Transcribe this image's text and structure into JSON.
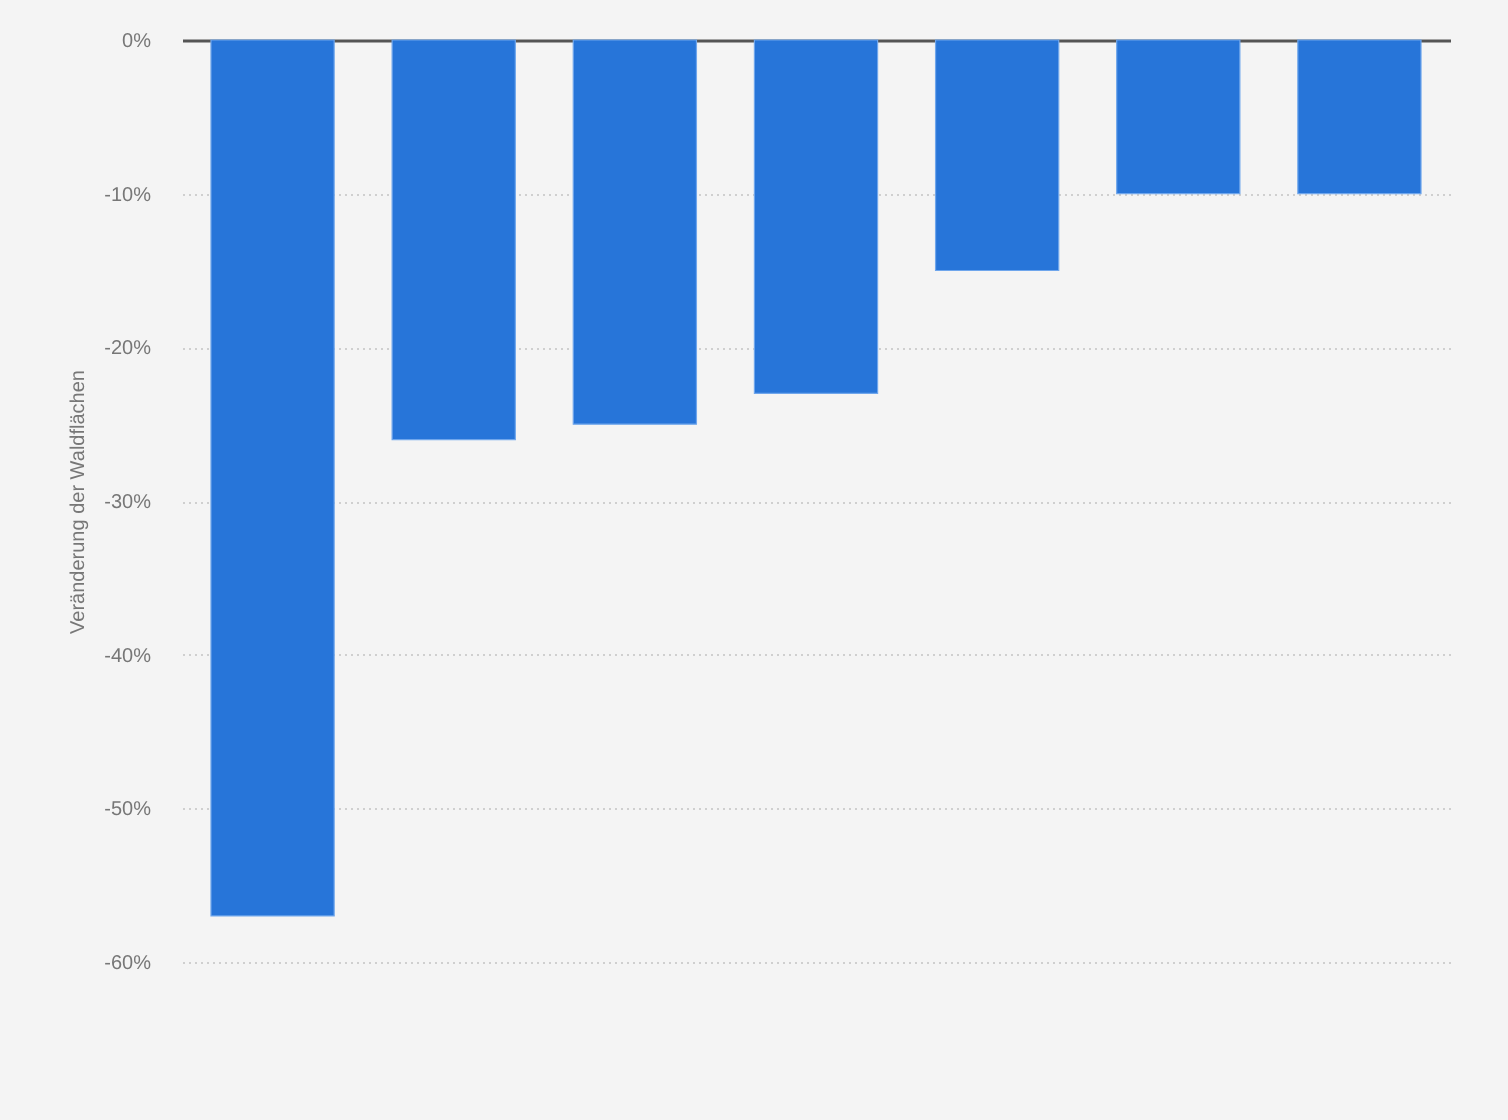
{
  "chart_data": {
    "type": "bar",
    "ylabel": "Veränderung der Waldflächen",
    "categories": [
      null,
      null,
      null,
      null,
      null,
      null,
      null
    ],
    "values": [
      -57,
      -26,
      -25,
      -23,
      -15,
      -10,
      -10
    ],
    "color": "#2775d9",
    "ylim": [
      -60,
      0
    ],
    "yticks": [
      {
        "value": 0,
        "label": "0%"
      },
      {
        "value": -10,
        "label": "-10%"
      },
      {
        "value": -20,
        "label": "-20%"
      },
      {
        "value": -30,
        "label": "-30%"
      },
      {
        "value": -40,
        "label": "-40%"
      },
      {
        "value": -50,
        "label": "-50%"
      },
      {
        "value": -60,
        "label": "-60%"
      }
    ],
    "grid": "y",
    "tick_labels": "y"
  }
}
